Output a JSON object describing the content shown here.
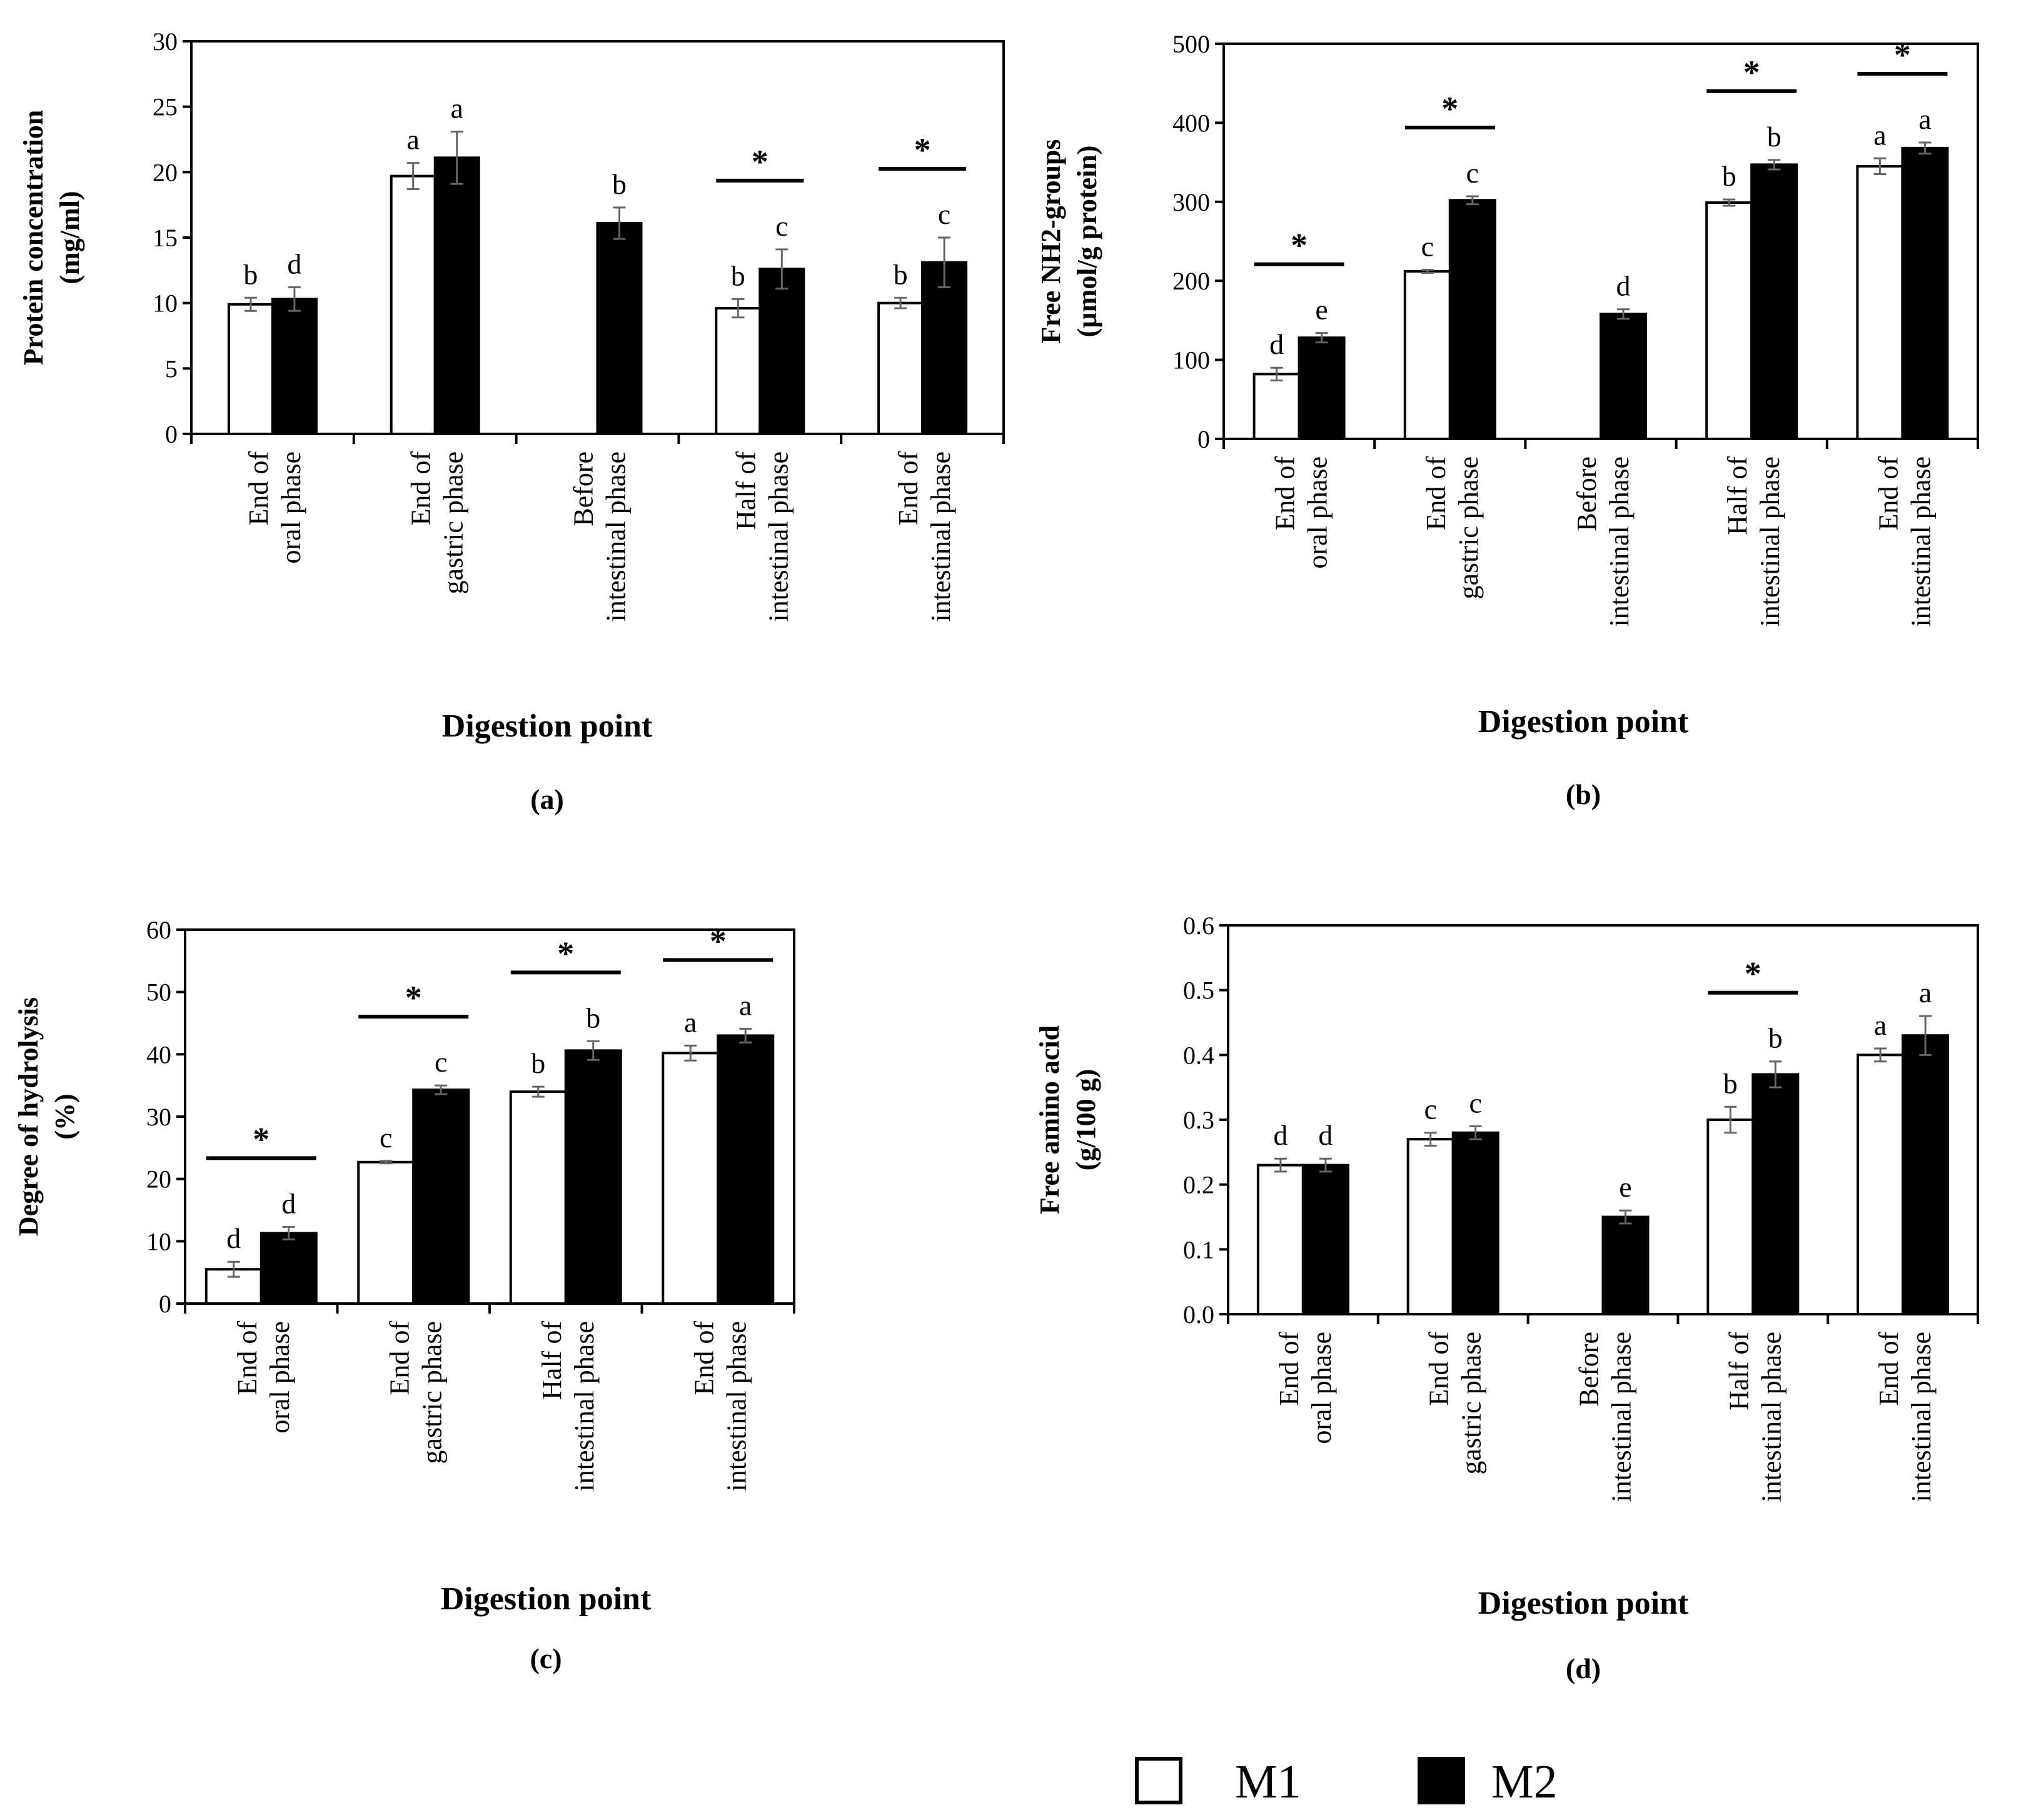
{
  "legend": {
    "m1": "M1",
    "m2": "M2",
    "m1_color": "#ffffff",
    "m2_color": "#000000"
  },
  "chart_data": [
    {
      "type": "bar",
      "panel": "(a)",
      "ylabel": [
        "Protein concentration",
        "(mg/ml)"
      ],
      "xlabel": "Digestion point",
      "ylim": [
        0,
        30
      ],
      "yticks": [
        0,
        5,
        10,
        15,
        20,
        25,
        30
      ],
      "categories": [
        [
          "End of",
          "oral phase"
        ],
        [
          "End of",
          "gastric phase"
        ],
        [
          "Before",
          "intestinal phase"
        ],
        [
          "Half of",
          "intestinal phase"
        ],
        [
          "End of",
          "intestinal phase"
        ]
      ],
      "series": [
        {
          "name": "M1",
          "values": [
            9.9,
            19.7,
            null,
            9.6,
            10.0
          ],
          "errors": [
            0.5,
            1.0,
            null,
            0.7,
            0.4
          ],
          "letters": [
            "b",
            "a",
            null,
            "b",
            "b"
          ]
        },
        {
          "name": "M2",
          "values": [
            10.3,
            21.1,
            16.1,
            12.6,
            13.1
          ],
          "errors": [
            0.9,
            2.0,
            1.2,
            1.5,
            1.9
          ],
          "letters": [
            "d",
            "a",
            "b",
            "c",
            "c"
          ]
        }
      ],
      "significance": [
        false,
        false,
        false,
        true,
        true
      ],
      "significance_label": "*",
      "ytick_labels": [
        "0",
        "5",
        "10",
        "15",
        "20",
        "25",
        "30"
      ]
    },
    {
      "type": "bar",
      "panel": "(b)",
      "ylabel": [
        "Free NH2-groups",
        "(µmol/g protein)"
      ],
      "xlabel": "Digestion point",
      "ylim": [
        0,
        500
      ],
      "yticks": [
        0,
        100,
        200,
        300,
        400,
        500
      ],
      "categories": [
        [
          "End of",
          "oral phase"
        ],
        [
          "End of",
          "gastric phase"
        ],
        [
          "Before",
          "intestinal phase"
        ],
        [
          "Half of",
          "intestinal phase"
        ],
        [
          "End of",
          "intestinal phase"
        ]
      ],
      "series": [
        {
          "name": "M1",
          "values": [
            82,
            212,
            null,
            299,
            345
          ],
          "errors": [
            8,
            2,
            null,
            4,
            10
          ],
          "letters": [
            "d",
            "c",
            null,
            "b",
            "a"
          ]
        },
        {
          "name": "M2",
          "values": [
            128,
            302,
            158,
            347,
            368
          ],
          "errors": [
            6,
            5,
            6,
            6,
            7
          ],
          "letters": [
            "e",
            "c",
            "d",
            "b",
            "a"
          ]
        }
      ],
      "significance": [
        true,
        true,
        false,
        true,
        true
      ],
      "significance_label": "*",
      "ytick_labels": [
        "0",
        "100",
        "200",
        "300",
        "400",
        "500"
      ]
    },
    {
      "type": "bar",
      "panel": "(c)",
      "ylabel": [
        "Degree of hydrolysis",
        "(%)"
      ],
      "xlabel": "Digestion point",
      "ylim": [
        0,
        60
      ],
      "yticks": [
        0,
        10,
        20,
        30,
        40,
        50,
        60
      ],
      "categories": [
        [
          "End of",
          "oral phase"
        ],
        [
          "End of",
          "gastric phase"
        ],
        [
          "Half of",
          "intestinal phase"
        ],
        [
          "End of",
          "intestinal phase"
        ]
      ],
      "series": [
        {
          "name": "M1",
          "values": [
            5.5,
            22.7,
            34.0,
            40.2
          ],
          "errors": [
            1.2,
            0.2,
            0.8,
            1.2
          ],
          "letters": [
            "d",
            "c",
            "b",
            "a"
          ]
        },
        {
          "name": "M2",
          "values": [
            11.3,
            34.3,
            40.6,
            43.0
          ],
          "errors": [
            1.0,
            0.7,
            1.5,
            1.1
          ],
          "letters": [
            "d",
            "c",
            "b",
            "a"
          ]
        }
      ],
      "significance": [
        true,
        true,
        true,
        true
      ],
      "significance_label": "*",
      "ytick_labels": [
        "0",
        "10",
        "20",
        "30",
        "40",
        "50",
        "60"
      ]
    },
    {
      "type": "bar",
      "panel": "(d)",
      "ylabel": [
        "Free amino acid",
        "(g/100 g)"
      ],
      "xlabel": "Digestion point",
      "ylim": [
        0,
        0.6
      ],
      "yticks": [
        0,
        0.1,
        0.2,
        0.3,
        0.4,
        0.5,
        0.6
      ],
      "categories": [
        [
          "End of",
          "oral phase"
        ],
        [
          "End of",
          "gastric phase"
        ],
        [
          "Before",
          "intestinal phase"
        ],
        [
          "Half of",
          "intestinal phase"
        ],
        [
          "End of",
          "intestinal phase"
        ]
      ],
      "series": [
        {
          "name": "M1",
          "values": [
            0.23,
            0.27,
            null,
            0.3,
            0.4
          ],
          "errors": [
            0.01,
            0.01,
            null,
            0.02,
            0.01
          ],
          "letters": [
            "d",
            "c",
            null,
            "b",
            "a"
          ]
        },
        {
          "name": "M2",
          "values": [
            0.23,
            0.28,
            0.15,
            0.37,
            0.43
          ],
          "errors": [
            0.01,
            0.01,
            0.01,
            0.02,
            0.03
          ],
          "letters": [
            "d",
            "c",
            "e",
            "b",
            "a"
          ]
        }
      ],
      "significance": [
        false,
        false,
        false,
        true,
        false
      ],
      "significance_label": "*",
      "ytick_labels": [
        "0.0",
        "0.1",
        "0.2",
        "0.3",
        "0.4",
        "0.5",
        "0.6"
      ]
    }
  ]
}
